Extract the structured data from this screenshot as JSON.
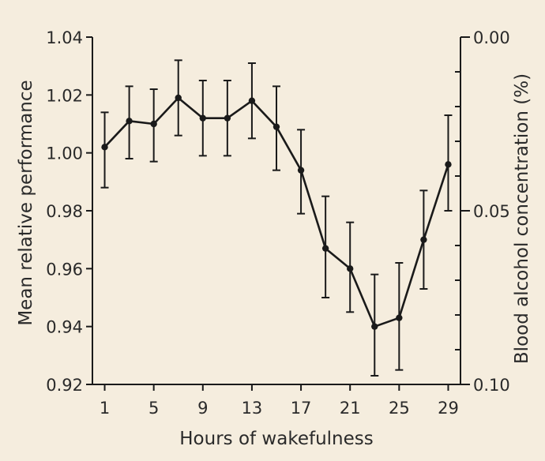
{
  "colors": {
    "background": "#f5edde",
    "ink": "#1a1a1a"
  },
  "chart_data": {
    "type": "line",
    "title": "",
    "xlabel": "Hours of wakefulness",
    "ylabel": "Mean relative performance",
    "y2label": "Blood alcohol concentration (%)",
    "x_ticks": [
      1,
      5,
      9,
      13,
      17,
      21,
      25,
      29
    ],
    "y_ticks": [
      "0.92",
      "0.94",
      "0.96",
      "0.98",
      "1.00",
      "1.02",
      "1.04"
    ],
    "y2_ticks_labeled": [
      "0.00",
      "0.05",
      "0.10"
    ],
    "y2_ticks_minor": [
      0.01,
      0.02,
      0.03,
      0.04,
      0.06,
      0.07,
      0.08,
      0.09
    ],
    "xlim": [
      0,
      30
    ],
    "ylim": [
      0.92,
      1.04
    ],
    "y2lim": [
      0.0,
      0.1
    ],
    "y2_inverted": true,
    "grid": false,
    "legend": "none",
    "series": [
      {
        "x": [
          1,
          3,
          5,
          7,
          9,
          11,
          13,
          15,
          17,
          19,
          21,
          23,
          25,
          27,
          29
        ],
        "values": [
          1.002,
          1.011,
          1.01,
          1.019,
          1.012,
          1.012,
          1.018,
          1.009,
          0.994,
          0.967,
          0.96,
          0.94,
          0.943,
          0.97,
          0.996
        ],
        "error_low": [
          0.988,
          0.998,
          0.997,
          1.006,
          0.999,
          0.999,
          1.005,
          0.994,
          0.979,
          0.95,
          0.945,
          0.923,
          0.925,
          0.953,
          0.98
        ],
        "error_high": [
          1.014,
          1.023,
          1.022,
          1.032,
          1.025,
          1.025,
          1.031,
          1.023,
          1.008,
          0.985,
          0.976,
          0.958,
          0.962,
          0.987,
          1.013
        ]
      }
    ]
  }
}
